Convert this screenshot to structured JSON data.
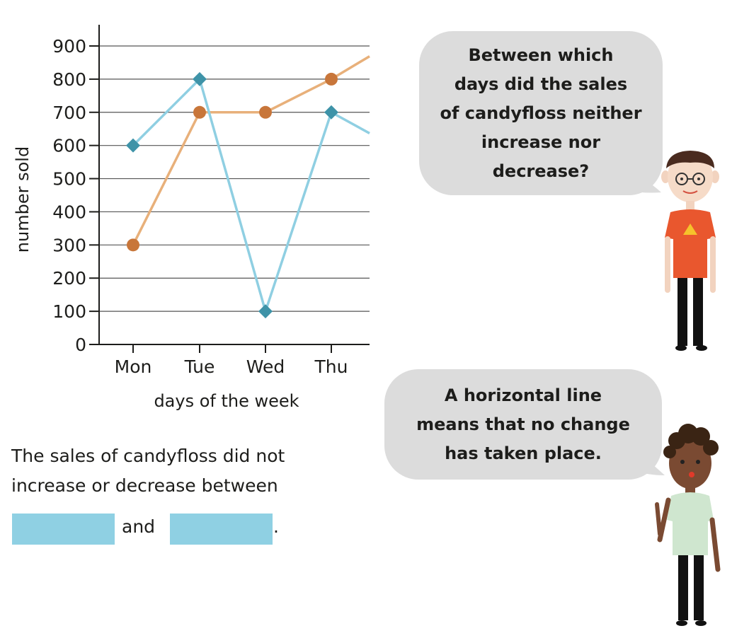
{
  "chart_data": {
    "type": "line",
    "categories": [
      "Mon",
      "Tue",
      "Wed",
      "Thu"
    ],
    "xlabel": "days of the week",
    "ylabel": "number sold",
    "ylim": [
      0,
      900
    ],
    "yticks": [
      0,
      100,
      200,
      300,
      400,
      500,
      600,
      700,
      800,
      900
    ],
    "grid": true,
    "series": [
      {
        "color": "#e8b07a",
        "marker_color": "#c8763a",
        "marker": "circle",
        "values": [
          300,
          700,
          700,
          800
        ],
        "continues_to": 920
      },
      {
        "color": "#8fcfe2",
        "marker_color": "#3e93a8",
        "marker": "diamond",
        "values": [
          600,
          800,
          100,
          700
        ],
        "continues_to": 590
      }
    ]
  },
  "bubbles": {
    "question": "Between which\ndays did the sales\nof candyfloss neither\nincrease nor\ndecrease?",
    "hint": "A horizontal line\nmeans that no change\nhas taken place."
  },
  "exercise": {
    "text": "The sales of candyfloss did not\nincrease or decrease between",
    "and": "and",
    "period": "."
  },
  "colors": {
    "bubble": "#dcdcdc",
    "answer_box": "#8fd0e3"
  }
}
